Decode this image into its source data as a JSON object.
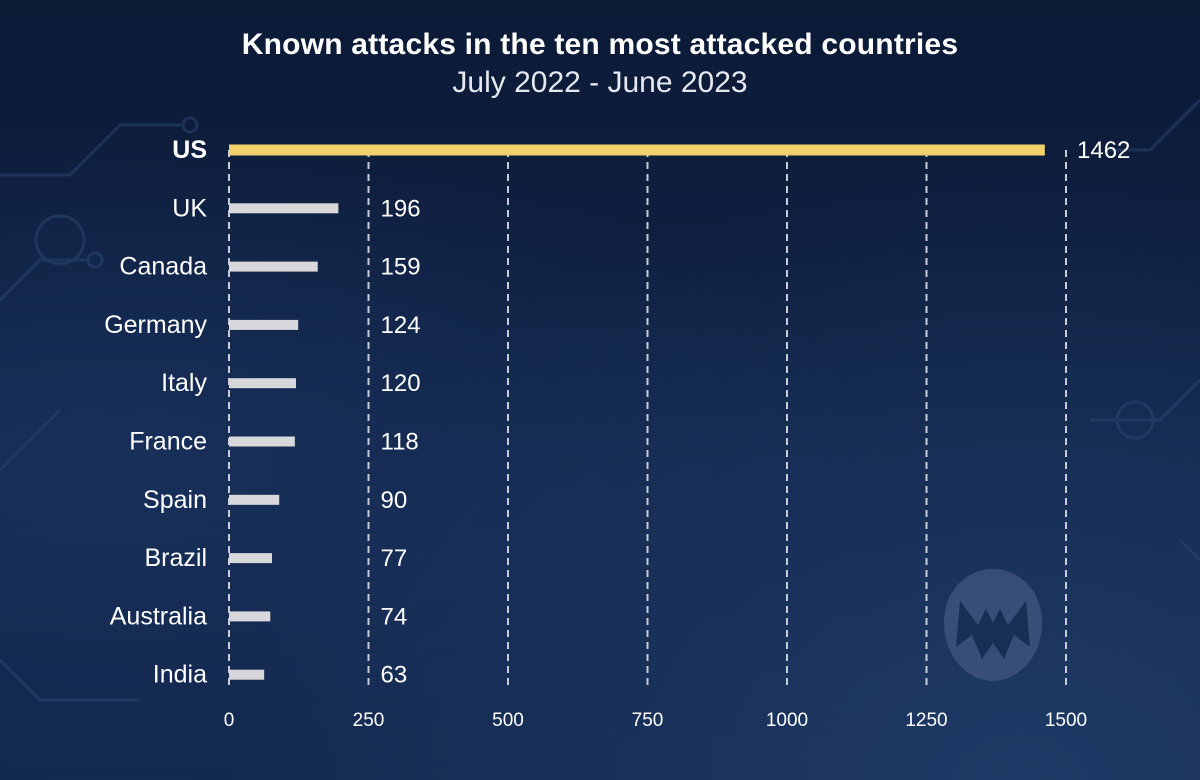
{
  "chart_data": {
    "type": "bar",
    "orientation": "horizontal",
    "title": "Known attacks in the ten most attacked countries",
    "subtitle": "July 2022 - June 2023",
    "categories": [
      "US",
      "UK",
      "Canada",
      "Germany",
      "Italy",
      "France",
      "Spain",
      "Brazil",
      "Australia",
      "India"
    ],
    "values": [
      1462,
      196,
      159,
      124,
      120,
      118,
      90,
      77,
      74,
      63
    ],
    "highlight": "US",
    "xlim": [
      0,
      1500
    ],
    "xticks": [
      0,
      250,
      500,
      750,
      1000,
      1250,
      1500
    ],
    "grid": "vertical dashed",
    "xlabel": "",
    "ylabel": ""
  },
  "colors": {
    "highlight_bar": "#f2d06b",
    "bar": "#d8d8dc",
    "grid": "#c9ccd6",
    "text": "#ffffff"
  },
  "logo_icon": "malwarebytes-logo-icon"
}
